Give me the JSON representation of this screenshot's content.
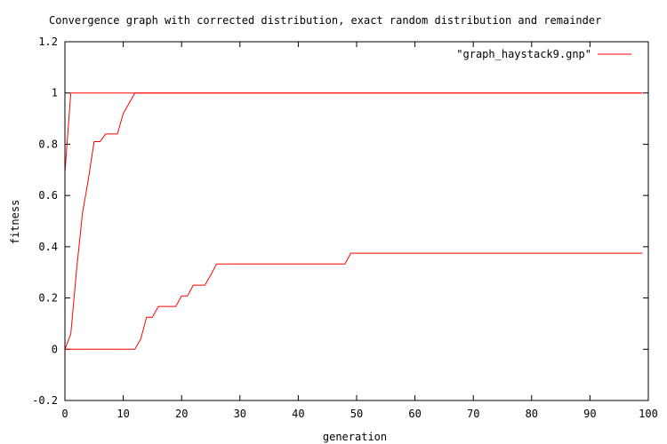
{
  "chart_data": {
    "type": "line",
    "title": "Convergence graph with corrected distribution, exact random distribution and remainder",
    "xlabel": "generation",
    "ylabel": "fitness",
    "xlim": [
      0,
      100
    ],
    "ylim": [
      -0.2,
      1.2
    ],
    "x_ticks": [
      0,
      10,
      20,
      30,
      40,
      50,
      60,
      70,
      80,
      90,
      100
    ],
    "y_ticks": [
      -0.2,
      0,
      0.2,
      0.4,
      0.6,
      0.8,
      1,
      1.2
    ],
    "x_tick_labels": [
      "0",
      "10",
      "20",
      "30",
      "40",
      "50",
      "60",
      "70",
      "80",
      "90",
      "100"
    ],
    "y_tick_labels": [
      "-0.2",
      "0",
      "0.2",
      "0.4",
      "0.6",
      "0.8",
      "1",
      "1.2"
    ],
    "grid": false,
    "legend_position": "top-right",
    "color": "#ff0000",
    "series": [
      {
        "name": "\"graph_haystack9.gnp\"",
        "x": [
          0,
          1,
          2,
          3,
          4,
          5,
          6,
          7,
          8,
          9,
          10,
          11,
          12,
          13,
          14,
          15,
          16,
          17,
          18,
          19,
          20,
          21,
          22,
          23,
          24,
          25,
          26,
          27,
          28,
          29,
          30,
          31,
          32,
          33,
          34,
          35,
          36,
          37,
          38,
          39,
          40,
          41,
          42,
          43,
          44,
          45,
          46,
          47,
          48,
          49,
          50,
          51,
          52,
          53,
          54,
          55,
          56,
          57,
          58,
          59,
          60,
          61,
          62,
          63,
          64,
          65,
          66,
          67,
          68,
          69,
          70,
          71,
          72,
          73,
          74,
          75,
          76,
          77,
          78,
          79,
          80,
          81,
          82,
          83,
          84,
          85,
          86,
          87,
          88,
          89,
          90,
          91,
          92,
          93,
          94,
          95,
          96,
          97,
          98,
          99
        ],
        "y": [
          0.69,
          1,
          1,
          1,
          1,
          1,
          1,
          1,
          1,
          1,
          1,
          1,
          1,
          1,
          1,
          1,
          1,
          1,
          1,
          1,
          1,
          1,
          1,
          1,
          1,
          1,
          1,
          1,
          1,
          1,
          1,
          1,
          1,
          1,
          1,
          1,
          1,
          1,
          1,
          1,
          1,
          1,
          1,
          1,
          1,
          1,
          1,
          1,
          1,
          1,
          1,
          1,
          1,
          1,
          1,
          1,
          1,
          1,
          1,
          1,
          1,
          1,
          1,
          1,
          1,
          1,
          1,
          1,
          1,
          1,
          1,
          1,
          1,
          1,
          1,
          1,
          1,
          1,
          1,
          1,
          1,
          1,
          1,
          1,
          1,
          1,
          1,
          1,
          1,
          1,
          1,
          1,
          1,
          1,
          1,
          1,
          1,
          1,
          1,
          1
        ]
      },
      {
        "name": "",
        "x": [
          0,
          1,
          2,
          3,
          4,
          5,
          6,
          7,
          8,
          9,
          10,
          11,
          12,
          13,
          14,
          15,
          16,
          17,
          18,
          19,
          20,
          21,
          22,
          23,
          24,
          25,
          26,
          27,
          28,
          29,
          30,
          31,
          32,
          33,
          34,
          35,
          36,
          37,
          38,
          39,
          40,
          41,
          42,
          43,
          44,
          45,
          46,
          47,
          48,
          49,
          50,
          51,
          52,
          53,
          54,
          55,
          56,
          57,
          58,
          59,
          60,
          61,
          62,
          63,
          64,
          65,
          66,
          67,
          68,
          69,
          70,
          71,
          72,
          73,
          74,
          75,
          76,
          77,
          78,
          79,
          80,
          81,
          82,
          83,
          84,
          85,
          86,
          87,
          88,
          89,
          90,
          91,
          92,
          93,
          94,
          95,
          96,
          97,
          98,
          99
        ],
        "y": [
          0,
          0.06,
          0.31,
          0.53,
          0.66,
          0.81,
          0.81,
          0.84,
          0.84,
          0.84,
          0.92,
          0.96,
          1,
          1,
          1,
          1,
          1,
          1,
          1,
          1,
          1,
          1,
          1,
          1,
          1,
          1,
          1,
          1,
          1,
          1,
          1,
          1,
          1,
          1,
          1,
          1,
          1,
          1,
          1,
          1,
          1,
          1,
          1,
          1,
          1,
          1,
          1,
          1,
          1,
          1,
          1,
          1,
          1,
          1,
          1,
          1,
          1,
          1,
          1,
          1,
          1,
          1,
          1,
          1,
          1,
          1,
          1,
          1,
          1,
          1,
          1,
          1,
          1,
          1,
          1,
          1,
          1,
          1,
          1,
          1,
          1,
          1,
          1,
          1,
          1,
          1,
          1,
          1,
          1,
          1,
          1,
          1,
          1,
          1,
          1,
          1,
          1,
          1,
          1,
          1
        ]
      },
      {
        "name": "",
        "x": [
          0,
          1,
          2,
          3,
          4,
          5,
          6,
          7,
          8,
          9,
          10,
          11,
          12,
          13,
          14,
          15,
          16,
          17,
          18,
          19,
          20,
          21,
          22,
          23,
          24,
          25,
          26,
          27,
          28,
          29,
          30,
          31,
          32,
          33,
          34,
          35,
          36,
          37,
          38,
          39,
          40,
          41,
          42,
          43,
          44,
          45,
          46,
          47,
          48,
          49,
          50,
          51,
          52,
          53,
          54,
          55,
          56,
          57,
          58,
          59,
          60,
          61,
          62,
          63,
          64,
          65,
          66,
          67,
          68,
          69,
          70,
          71,
          72,
          73,
          74,
          75,
          76,
          77,
          78,
          79,
          80,
          81,
          82,
          83,
          84,
          85,
          86,
          87,
          88,
          89,
          90,
          91,
          92,
          93,
          94,
          95,
          96,
          97,
          98,
          99
        ],
        "y": [
          0,
          0,
          0,
          0,
          0,
          0,
          0,
          0,
          0,
          0,
          0,
          0,
          0,
          0.04,
          0.125,
          0.125,
          0.167,
          0.167,
          0.167,
          0.167,
          0.208,
          0.208,
          0.25,
          0.25,
          0.25,
          0.29,
          0.333,
          0.333,
          0.333,
          0.333,
          0.333,
          0.333,
          0.333,
          0.333,
          0.333,
          0.333,
          0.333,
          0.333,
          0.333,
          0.333,
          0.333,
          0.333,
          0.333,
          0.333,
          0.333,
          0.333,
          0.333,
          0.333,
          0.333,
          0.375,
          0.375,
          0.375,
          0.375,
          0.375,
          0.375,
          0.375,
          0.375,
          0.375,
          0.375,
          0.375,
          0.375,
          0.375,
          0.375,
          0.375,
          0.375,
          0.375,
          0.375,
          0.375,
          0.375,
          0.375,
          0.375,
          0.375,
          0.375,
          0.375,
          0.375,
          0.375,
          0.375,
          0.375,
          0.375,
          0.375,
          0.375,
          0.375,
          0.375,
          0.375,
          0.375,
          0.375,
          0.375,
          0.375,
          0.375,
          0.375,
          0.375,
          0.375,
          0.375,
          0.375,
          0.375,
          0.375,
          0.375,
          0.375,
          0.375,
          0.375
        ]
      }
    ]
  }
}
